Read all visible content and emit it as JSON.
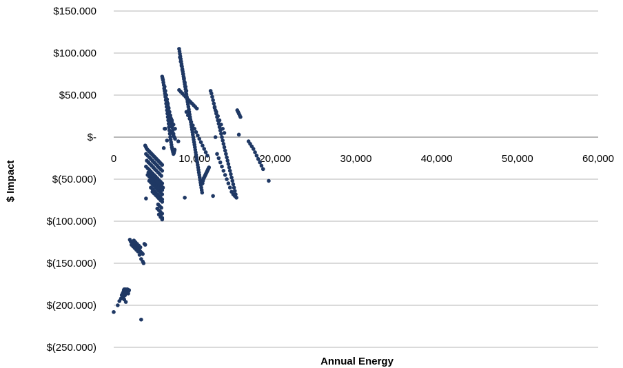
{
  "chart_data": {
    "type": "scatter",
    "title": "",
    "xlabel": "Annual Energy",
    "ylabel": "$ Impact",
    "xlim": [
      0,
      60000
    ],
    "ylim": [
      -250000,
      150000
    ],
    "x_tick_values": [
      0,
      10000,
      20000,
      30000,
      40000,
      50000,
      60000
    ],
    "x_tick_labels": [
      "0",
      "10,000",
      "20,000",
      "30,000",
      "40,000",
      "50,000",
      "60,000"
    ],
    "y_tick_values": [
      150000,
      100000,
      50000,
      0,
      -50000,
      -100000,
      -150000,
      -200000,
      -250000
    ],
    "y_tick_labels": [
      "$150.000",
      "$100.000",
      "$50.000",
      "$-",
      "$(50.000)",
      "$(100.000)",
      "$(150.000)",
      "$(200.000)",
      "$(250.000)"
    ],
    "grid": true,
    "legend": "none",
    "marker_color": "#1f3864",
    "series": [
      {
        "x": [
          0,
          500,
          700,
          900,
          1000,
          1100,
          1200,
          1250,
          1300,
          1350,
          1400,
          1450,
          1500,
          1550,
          1600,
          1650,
          1700,
          1750,
          1800,
          1850,
          1900,
          1200,
          1300,
          1400,
          1500,
          1600,
          3400,
          2000,
          2100,
          2200,
          2300,
          2400,
          2500,
          2600,
          2700,
          2800,
          2900,
          3000,
          3100,
          3200,
          3300,
          3400,
          3500,
          3600,
          2200,
          2400,
          2600,
          2800,
          3000,
          3200,
          2500,
          2700,
          2900,
          3100,
          3300,
          3400,
          3600,
          3700,
          3800,
          3900,
          3900,
          4000,
          4100,
          4200,
          4300,
          4400,
          4500,
          4600,
          4700,
          4800,
          4900,
          5000,
          5100,
          5200,
          5300,
          5400,
          5500,
          5600,
          5700,
          5800,
          5900,
          6000,
          4000,
          4200,
          4400,
          4600,
          4800,
          5000,
          5200,
          5400,
          5600,
          5800,
          6000,
          4100,
          4300,
          4500,
          4700,
          4900,
          5100,
          5300,
          5500,
          5700,
          5900,
          4000,
          4200,
          4400,
          4600,
          4800,
          5000,
          5200,
          5400,
          5600,
          5800,
          6000,
          4200,
          4400,
          4600,
          4800,
          5000,
          5200,
          5400,
          5600,
          5800,
          6000,
          4400,
          4600,
          4800,
          5000,
          5200,
          5400,
          5600,
          5800,
          6000,
          4300,
          4500,
          4700,
          4900,
          5100,
          5300,
          5500,
          5700,
          5900,
          4600,
          4800,
          5000,
          5200,
          5400,
          5600,
          5800,
          6000,
          4800,
          5000,
          5200,
          5400,
          5600,
          5800,
          6000,
          4000,
          5500,
          5700,
          5900,
          5400,
          5600,
          5800,
          6000,
          5600,
          5800,
          6000,
          5800,
          6000,
          6000,
          6100,
          6000,
          6050,
          6100,
          6150,
          6200,
          6250,
          6300,
          6350,
          6400,
          6450,
          6500,
          6550,
          6600,
          6650,
          6700,
          6750,
          6800,
          6850,
          6900,
          6950,
          7000,
          7050,
          7100,
          7150,
          7200,
          7250,
          7300,
          7350,
          7400,
          7450,
          7500,
          7550,
          6200,
          6300,
          6400,
          6500,
          6600,
          6700,
          6800,
          6900,
          7000,
          7100,
          7200,
          6300,
          6400,
          6500,
          6600,
          6700,
          6800,
          6900,
          7000,
          7100,
          7200,
          7300,
          6400,
          6500,
          6600,
          6700,
          6800,
          6900,
          7000,
          7100,
          7200,
          7300,
          7400,
          7500,
          6600,
          6800,
          7000,
          7200,
          7400,
          7600,
          7200,
          7400,
          7600,
          8000,
          8100,
          8150,
          8200,
          8250,
          8300,
          8350,
          8400,
          8450,
          8500,
          8550,
          8600,
          8650,
          8700,
          8750,
          8800,
          8850,
          8900,
          8950,
          9000,
          9050,
          9100,
          9150,
          9200,
          9250,
          9300,
          9350,
          9400,
          9450,
          9500,
          9550,
          9600,
          9650,
          9700,
          9750,
          9800,
          9850,
          9900,
          9950,
          10000,
          10050,
          10100,
          10150,
          10200,
          10250,
          10300,
          10350,
          10400,
          10450,
          10500,
          10550,
          10600,
          10650,
          10700,
          10750,
          10800,
          10850,
          10900,
          10950,
          11000,
          11050,
          11100,
          11150,
          11200,
          11250,
          11300,
          11350,
          11400,
          11450,
          11500,
          11550,
          11600,
          11650,
          11700,
          11750,
          11800,
          8200,
          8300,
          8400,
          8500,
          8600,
          8700,
          8800,
          8900,
          9000,
          8100,
          8300,
          8500,
          8700,
          8900,
          9100,
          9300,
          9500,
          9700,
          9900,
          10100,
          10300,
          9000,
          9200,
          9400,
          9600,
          9800,
          10000,
          10200,
          10400,
          10600,
          10800,
          11000,
          11200,
          11400,
          11600,
          8800,
          12000,
          12100,
          12200,
          12300,
          12400,
          12500,
          12600,
          12700,
          12800,
          12900,
          13000,
          13100,
          13200,
          13300,
          13400,
          13500,
          13600,
          13700,
          13800,
          13900,
          14000,
          14100,
          14200,
          14300,
          14400,
          14500,
          14600,
          14700,
          14800,
          14900,
          15000,
          15100,
          12300,
          12500,
          12700,
          12900,
          13100,
          13300,
          13500,
          13700,
          12600,
          12800,
          13000,
          13200,
          13400,
          13600,
          13800,
          14000,
          14200,
          14400,
          14600,
          14800,
          15000,
          15200,
          15300,
          15400,
          15500,
          15600,
          15700,
          15500,
          16700,
          16900,
          17100,
          17300,
          17500,
          17700,
          17900,
          18100,
          18300,
          18500,
          19200
        ],
        "y": [
          -208000,
          -200000,
          -195000,
          -192000,
          -188000,
          -186000,
          -184000,
          -182000,
          -181000,
          -183000,
          -185000,
          -182000,
          -181000,
          -183000,
          -184000,
          -182000,
          -181000,
          -184000,
          -186000,
          -183000,
          -182000,
          -190000,
          -193000,
          -188000,
          -196000,
          -185000,
          -217000,
          -122000,
          -124000,
          -125000,
          -126000,
          -127000,
          -128000,
          -129000,
          -130000,
          -131000,
          -132000,
          -133000,
          -134000,
          -135000,
          -136000,
          -137000,
          -138000,
          -139000,
          -128000,
          -130000,
          -132000,
          -134000,
          -136000,
          -140000,
          -123000,
          -125000,
          -127000,
          -129000,
          -131000,
          -145000,
          -148000,
          -150000,
          -127000,
          -128000,
          -10000,
          -12000,
          -14000,
          -15000,
          -16000,
          -17000,
          -18000,
          -19000,
          -20000,
          -21000,
          -22000,
          -23000,
          -24000,
          -25000,
          -26000,
          -27000,
          -28000,
          -29000,
          -30000,
          -31000,
          -32000,
          -33000,
          -20000,
          -22000,
          -24000,
          -26000,
          -28000,
          -30000,
          -32000,
          -34000,
          -36000,
          -38000,
          -40000,
          -28000,
          -30000,
          -32000,
          -34000,
          -36000,
          -38000,
          -40000,
          -42000,
          -44000,
          -46000,
          -35000,
          -37000,
          -39000,
          -41000,
          -43000,
          -45000,
          -47000,
          -49000,
          -51000,
          -53000,
          -55000,
          -45000,
          -47000,
          -49000,
          -51000,
          -53000,
          -55000,
          -57000,
          -59000,
          -61000,
          -63000,
          -52000,
          -54000,
          -56000,
          -58000,
          -60000,
          -62000,
          -64000,
          -66000,
          -68000,
          -42000,
          -44000,
          -46000,
          -48000,
          -50000,
          -52000,
          -54000,
          -56000,
          -58000,
          -60000,
          -62000,
          -64000,
          -66000,
          -68000,
          -70000,
          -72000,
          -74000,
          -65000,
          -67000,
          -69000,
          -71000,
          -73000,
          -75000,
          -77000,
          -73000,
          -80000,
          -82000,
          -84000,
          -85000,
          -87000,
          -89000,
          -91000,
          -92000,
          -94000,
          -96000,
          -95000,
          -97000,
          -98000,
          -60000,
          72000,
          70000,
          68000,
          65000,
          62000,
          58000,
          55000,
          52000,
          48000,
          44000,
          40000,
          36000,
          32000,
          28000,
          24000,
          20000,
          16000,
          12000,
          8000,
          4000,
          0,
          -3000,
          -6000,
          -9000,
          -12000,
          -14000,
          -16000,
          -18000,
          -20000,
          -19000,
          -17000,
          -15000,
          -13000,
          60000,
          55000,
          50000,
          45000,
          40000,
          35000,
          30000,
          25000,
          20000,
          15000,
          10000,
          50000,
          46000,
          42000,
          38000,
          34000,
          30000,
          26000,
          22000,
          18000,
          14000,
          10000,
          40000,
          36000,
          32000,
          28000,
          24000,
          20000,
          16000,
          12000,
          8000,
          4000,
          0,
          -4000,
          30000,
          25000,
          20000,
          15000,
          10000,
          5000,
          2000,
          -2000,
          -5000,
          105000,
          102000,
          99000,
          96000,
          93000,
          90000,
          87000,
          84000,
          81000,
          78000,
          75000,
          72000,
          69000,
          66000,
          63000,
          60000,
          57000,
          54000,
          51000,
          48000,
          45000,
          42000,
          39000,
          36000,
          33000,
          30000,
          27000,
          24000,
          21000,
          18000,
          15000,
          12000,
          9000,
          6000,
          3000,
          0,
          -3000,
          -6000,
          -9000,
          -12000,
          -15000,
          -18000,
          -21000,
          -24000,
          -27000,
          -30000,
          -33000,
          -36000,
          -39000,
          -42000,
          -45000,
          -48000,
          -51000,
          -54000,
          -57000,
          -60000,
          -63000,
          -66000,
          -55000,
          -52000,
          -50000,
          -49000,
          -48000,
          -47000,
          -46000,
          -45000,
          -44000,
          -43000,
          -42000,
          -41000,
          -40000,
          -39000,
          -38000,
          -37000,
          -36000,
          95000,
          90000,
          85000,
          80000,
          75000,
          70000,
          65000,
          60000,
          55000,
          56000,
          54000,
          52000,
          50000,
          48000,
          46000,
          44000,
          42000,
          40000,
          38000,
          36000,
          34000,
          30000,
          26000,
          22000,
          18000,
          14000,
          10000,
          6000,
          2000,
          -2000,
          -6000,
          -10000,
          -14000,
          -18000,
          -22000,
          -72000,
          55000,
          52000,
          48000,
          44000,
          40000,
          36000,
          32000,
          28000,
          24000,
          20000,
          16000,
          12000,
          8000,
          4000,
          0,
          -4000,
          -8000,
          -12000,
          -16000,
          -20000,
          -24000,
          -28000,
          -32000,
          -36000,
          -40000,
          -44000,
          -48000,
          -52000,
          -56000,
          -60000,
          -64000,
          -68000,
          -70000,
          35000,
          30000,
          25000,
          20000,
          15000,
          10000,
          5000,
          0,
          -20000,
          -25000,
          -30000,
          -35000,
          -40000,
          -45000,
          -50000,
          -55000,
          -60000,
          -65000,
          -68000,
          -70000,
          -72000,
          32000,
          30000,
          28000,
          26000,
          24000,
          3000,
          -5000,
          -8000,
          -11000,
          -14000,
          -18000,
          -22000,
          -26000,
          -30000,
          -34000,
          -38000,
          -52000
        ]
      }
    ]
  }
}
